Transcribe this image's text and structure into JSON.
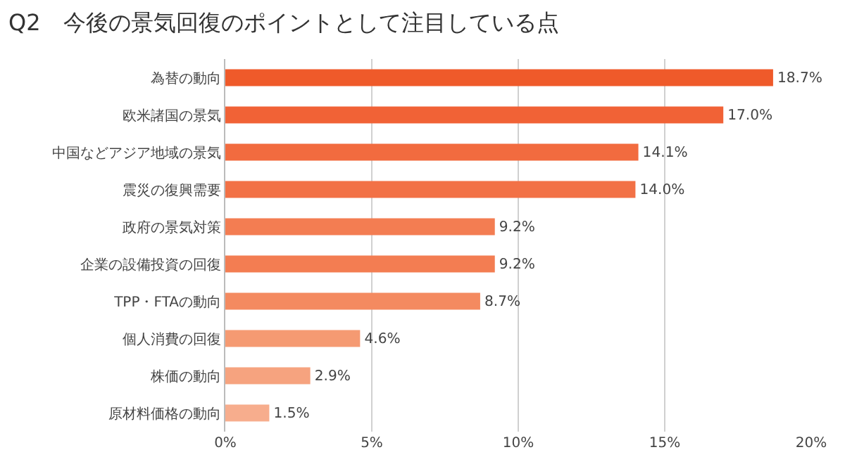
{
  "chart_data": {
    "type": "bar",
    "orientation": "horizontal",
    "title": "Q2　今後の景気回復のポイントとして注目している点",
    "categories": [
      "為替の動向",
      "欧米諸国の景気",
      "中国などアジア地域の景気",
      "震災の復興需要",
      "政府の景気対策",
      "企業の設備投資の回復",
      "TPP・FTAの動向",
      "個人消費の回復",
      "株価の動向",
      "原材料価格の動向"
    ],
    "values": [
      18.7,
      17.0,
      14.1,
      14.0,
      9.2,
      9.2,
      8.7,
      4.6,
      2.9,
      1.5
    ],
    "value_labels": [
      "18.7%",
      "17.0%",
      "14.1%",
      "14.0%",
      "9.2%",
      "9.2%",
      "8.7%",
      "4.6%",
      "2.9%",
      "1.5%"
    ],
    "colors": [
      "#ef5a2a",
      "#f16236",
      "#f26b3f",
      "#f27146",
      "#f37d52",
      "#f37d52",
      "#f48a60",
      "#f59a72",
      "#f6a37f",
      "#f7ad8d"
    ],
    "xlim": [
      0,
      20
    ],
    "xticks": [
      {
        "value": 0,
        "label": "0%"
      },
      {
        "value": 5,
        "label": "5%"
      },
      {
        "value": 10,
        "label": "10%"
      },
      {
        "value": 15,
        "label": "15%"
      },
      {
        "value": 20,
        "label": "20%"
      }
    ],
    "grid": "x"
  }
}
